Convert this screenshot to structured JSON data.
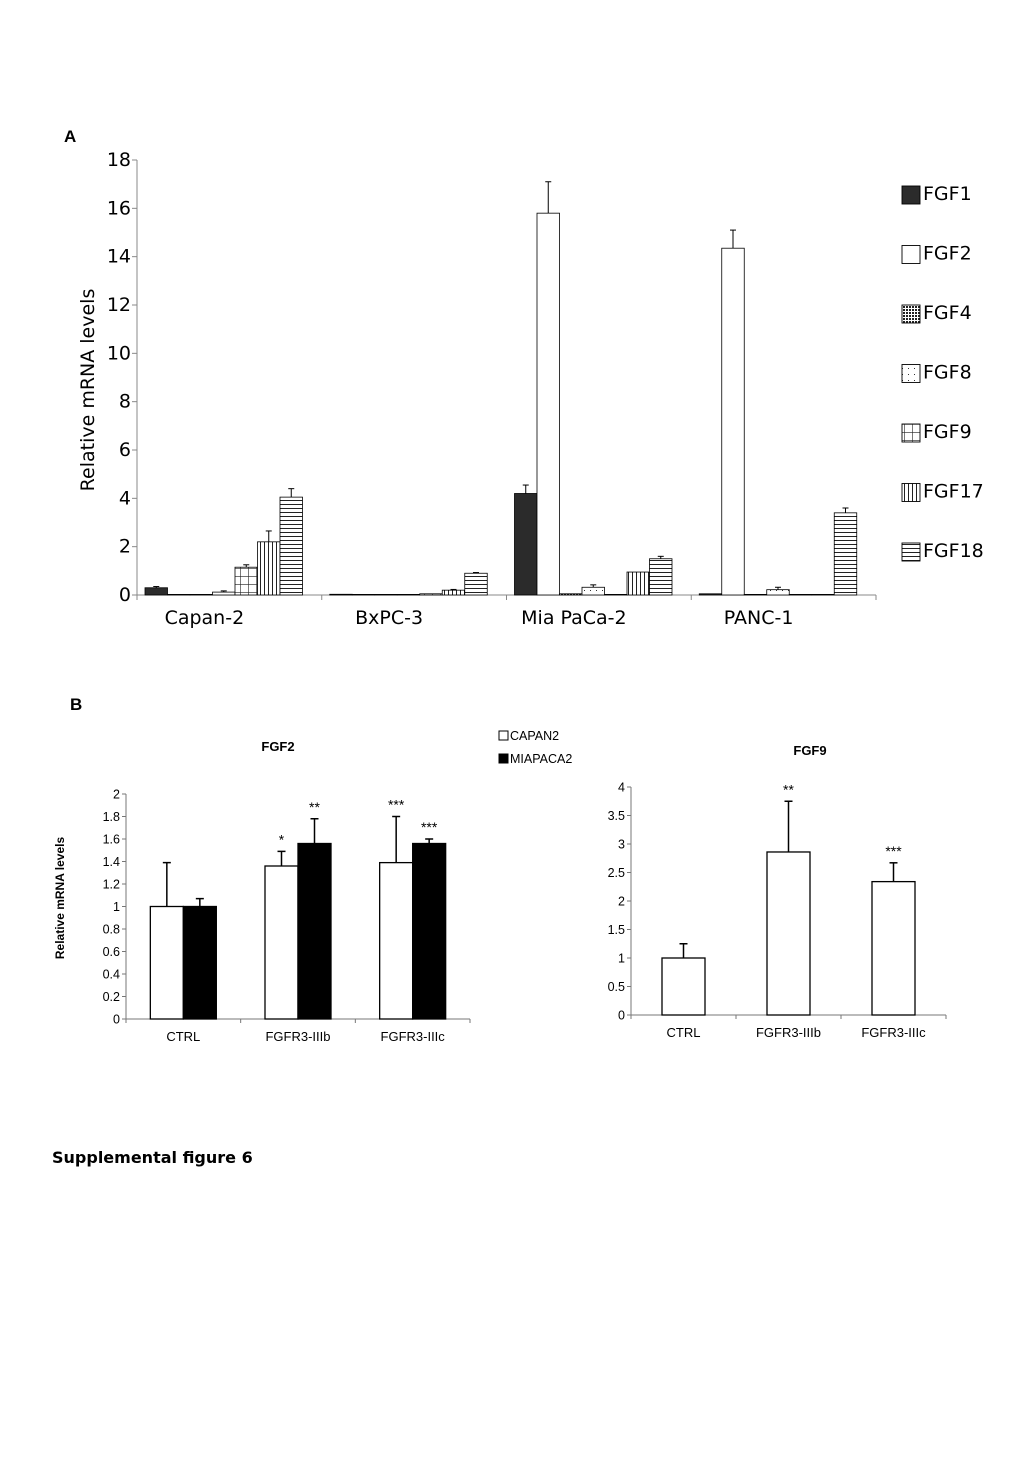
{
  "figure": {
    "caption": "Supplemental figure 6"
  },
  "chart_data": [
    {
      "panel": "A",
      "type": "bar",
      "ylabel": "Relative mRNA levels",
      "ylim": [
        0,
        18
      ],
      "yticks": [
        "0",
        "2",
        "4",
        "6",
        "8",
        "10",
        "12",
        "14",
        "16",
        "18"
      ],
      "categories": [
        "Capan-2",
        "BxPC-3",
        "Mia PaCa-2",
        "PANC-1"
      ],
      "legend_position": "right",
      "series": [
        {
          "name": "FGF1",
          "fill": "solid-dark",
          "values": [
            0.3,
            0.03,
            4.2,
            0.05
          ],
          "errors": [
            0.05,
            0.0,
            0.35,
            0.0
          ]
        },
        {
          "name": "FGF2",
          "fill": "white",
          "values": [
            0.0,
            0.0,
            15.8,
            14.35
          ],
          "errors": [
            0,
            0,
            1.3,
            0.75
          ]
        },
        {
          "name": "FGF4",
          "fill": "dense-dots",
          "values": [
            0.0,
            0.0,
            0.05,
            0.0
          ],
          "errors": [
            0,
            0,
            0,
            0
          ]
        },
        {
          "name": "FGF8",
          "fill": "sparse-dots",
          "values": [
            0.12,
            0.0,
            0.32,
            0.22
          ],
          "errors": [
            0.05,
            0,
            0.1,
            0.1
          ]
        },
        {
          "name": "FGF9",
          "fill": "grid",
          "values": [
            1.15,
            0.05,
            0.0,
            0.0
          ],
          "errors": [
            0.1,
            0,
            0,
            0
          ]
        },
        {
          "name": "FGF17",
          "fill": "vertical-lines",
          "values": [
            2.2,
            0.2,
            0.95,
            0.0
          ],
          "errors": [
            0.45,
            0.03,
            0,
            0
          ]
        },
        {
          "name": "FGF18",
          "fill": "horizontal-lines",
          "values": [
            4.05,
            0.9,
            1.5,
            3.4
          ],
          "errors": [
            0.35,
            0.03,
            0.1,
            0.2
          ]
        }
      ]
    },
    {
      "panel": "B",
      "type": "bar",
      "title": "FGF2",
      "ylabel": "Relative mRNA levels",
      "ylim": [
        0,
        2
      ],
      "yticks": [
        "0",
        "0.2",
        "0.4",
        "0.6",
        "0.8",
        "1",
        "1.2",
        "1.4",
        "1.6",
        "1.8",
        "2"
      ],
      "categories": [
        "CTRL",
        "FGFR3-IIIb",
        "FGFR3-IIIc"
      ],
      "legend_position": "top-right",
      "series": [
        {
          "name": "CAPAN2",
          "fill": "white",
          "values": [
            1.0,
            1.36,
            1.39
          ],
          "errors": [
            0.39,
            0.13,
            0.41
          ],
          "significance": [
            "",
            "*",
            "***"
          ]
        },
        {
          "name": "MIAPACA2",
          "fill": "black",
          "values": [
            1.0,
            1.56,
            1.56
          ],
          "errors": [
            0.07,
            0.22,
            0.04
          ],
          "significance": [
            "",
            "**",
            "***"
          ]
        }
      ]
    },
    {
      "panel": "B",
      "type": "bar",
      "title": "FGF9",
      "ylim": [
        0,
        4
      ],
      "yticks": [
        "0",
        "0.5",
        "1",
        "1.5",
        "2",
        "2.5",
        "3",
        "3.5",
        "4"
      ],
      "categories": [
        "CTRL",
        "FGFR3-IIIb",
        "FGFR3-IIIc"
      ],
      "series": [
        {
          "fill": "white",
          "values": [
            1.0,
            2.86,
            2.34
          ],
          "errors": [
            0.25,
            0.89,
            0.33
          ],
          "significance": [
            "",
            "**",
            "***"
          ]
        }
      ]
    }
  ],
  "labels": {
    "panel_a": "A",
    "panel_b": "B"
  }
}
